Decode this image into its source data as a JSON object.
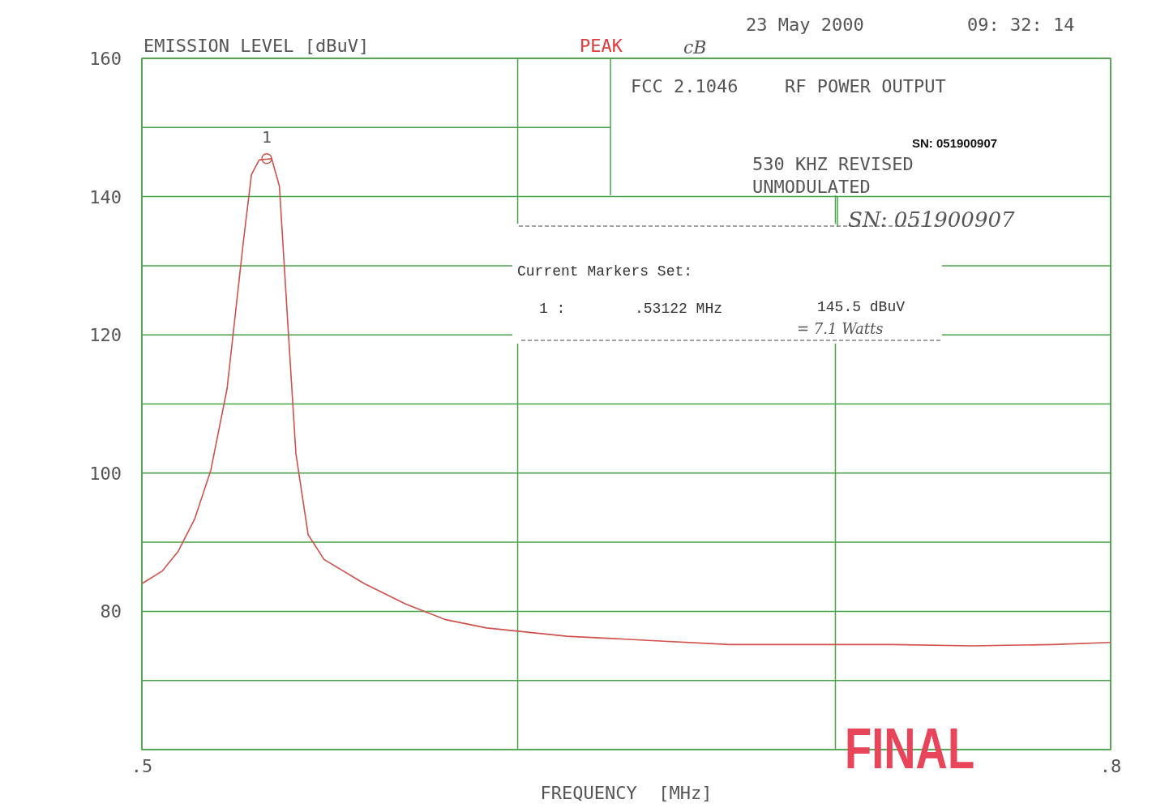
{
  "chart_data": {
    "type": "line",
    "ylabel": "EMISSION LEVEL [dBuV]",
    "xlabel": "FREQUENCY  [MHz]",
    "log": "x",
    "grid": true,
    "xlim": [
      0.5,
      0.8
    ],
    "xticks": [
      {
        "value": 0.5,
        "label": ".5"
      },
      {
        "value": 0.6,
        "label": null
      },
      {
        "value": 0.7,
        "label": null
      },
      {
        "value": 0.8,
        "label": ".8"
      }
    ],
    "ylim": [
      60,
      160
    ],
    "yticks": [
      {
        "value": 60,
        "label": null
      },
      {
        "value": 70,
        "label": null
      },
      80,
      {
        "value": 90,
        "label": null
      },
      100,
      {
        "value": 110,
        "label": null
      },
      120,
      {
        "value": 130,
        "label": null
      },
      140,
      {
        "value": 150,
        "label": null
      },
      160
    ],
    "series": [
      {
        "color": "#d0504a",
        "marker": "none",
        "x": [
          0.5,
          0.5049,
          0.5089,
          0.513,
          0.517,
          0.5211,
          0.5252,
          0.5273,
          0.5293,
          0.5325,
          0.5345,
          0.5367,
          0.5388,
          0.542,
          0.5462,
          0.557,
          0.5681,
          0.5794,
          0.591,
          0.6145,
          0.6392,
          0.6649,
          0.6915,
          0.7193,
          0.7481,
          0.778,
          0.8
        ],
        "values": [
          84.0,
          85.8,
          88.7,
          93.4,
          100.4,
          112.2,
          133.3,
          143.2,
          145.3,
          145.5,
          141.5,
          121.5,
          102.8,
          91.1,
          87.5,
          84.0,
          81.1,
          78.8,
          77.6,
          76.4,
          75.8,
          75.2,
          75.2,
          75.2,
          75.0,
          75.2,
          75.5
        ]
      },
      {
        "type": "scatter",
        "color": "#d0504a",
        "marker": "circle",
        "x": [
          0.53122
        ],
        "values": [
          145.5
        ]
      }
    ],
    "annotations": [
      "23 May 2000",
      "09: 32: 14",
      "PEAK",
      "cB",
      "FCC 2.1046",
      "RF POWER OUTPUT",
      "SN: 051900907",
      "530 KHZ REVISED",
      "UNMODULATED",
      "SN: 051900907",
      "Current Markers Set:",
      "1 :",
      ".53122 MHz",
      "145.5 dBuV",
      "= 7.1 Watts",
      "FINAL",
      {
        "text": "1",
        "x": 0.53122,
        "y": 145.5
      }
    ]
  }
}
